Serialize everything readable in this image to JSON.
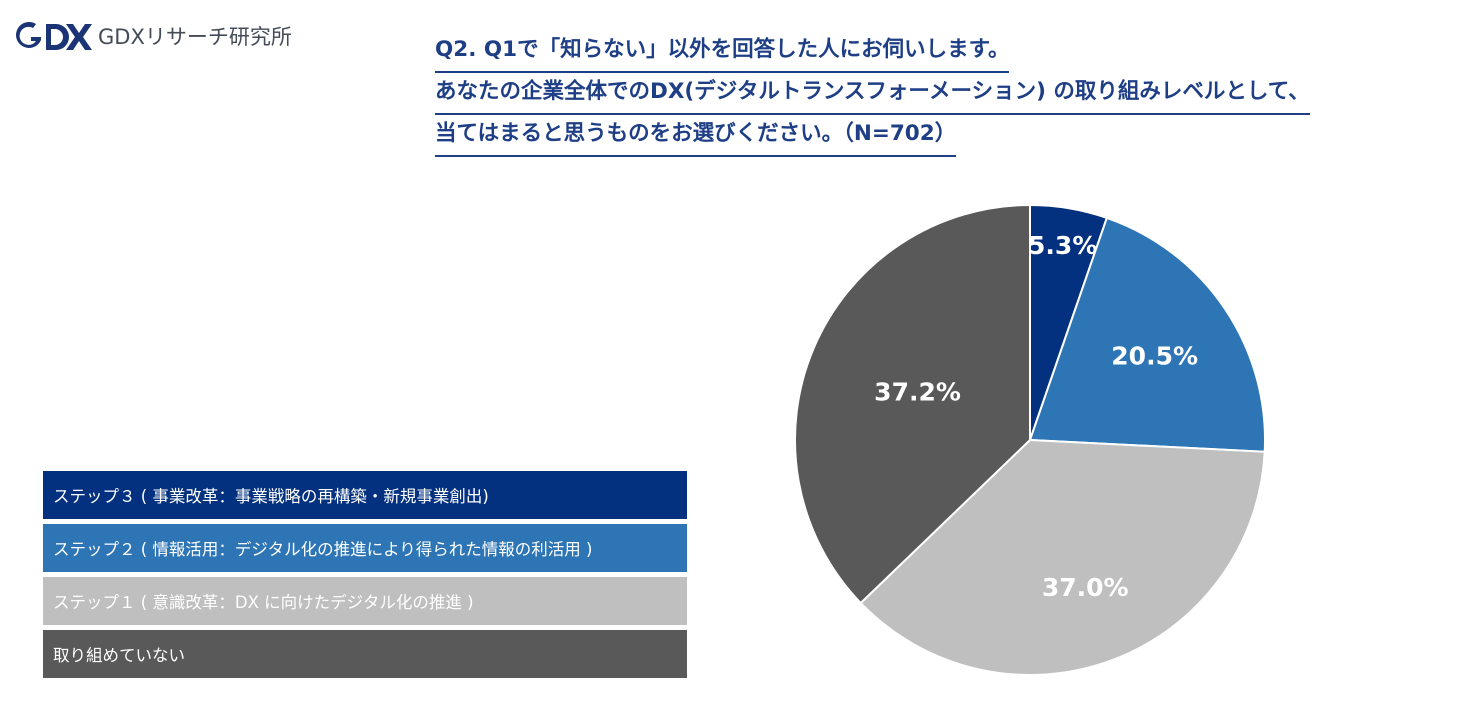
{
  "brand": {
    "logo_text": "GDXリサーチ研究所",
    "logo_mark_text": "GDX"
  },
  "question": {
    "lines": [
      "Q2. Q1で「知らない」以外を回答した人にお伺いします。",
      "あなたの企業全体でのDX(デジタルトランスフォーメーション) の取り組みレベルとして、",
      "当てはまると思うものをお選びください。（N=702）"
    ]
  },
  "colors": {
    "title": "#1e3f86",
    "step3": "#03317f",
    "step2": "#2e75b6",
    "step1": "#bfbfbf",
    "none": "#595959"
  },
  "chart_data": {
    "type": "pie",
    "n": 702,
    "start_angle_deg": 0,
    "direction": "clockwise",
    "series": [
      {
        "name": "ステップ３ ( 事業改革：事業戦略の再構築・新規事業創出)",
        "value": 5.3,
        "label": "5.3%",
        "color": "#03317f"
      },
      {
        "name": "ステップ２ ( 情報活用：デジタル化の推進により得られた情報の利活用 )",
        "value": 20.5,
        "label": "20.5%",
        "color": "#2e75b6"
      },
      {
        "name": "ステップ１ ( 意識改革：DX に向けたデジタル化の推進 )",
        "value": 37.0,
        "label": "37.0%",
        "color": "#bfbfbf"
      },
      {
        "name": "取り組めていない",
        "value": 37.2,
        "label": "37.2%",
        "color": "#595959"
      }
    ],
    "legend_position": "bottom-left"
  }
}
